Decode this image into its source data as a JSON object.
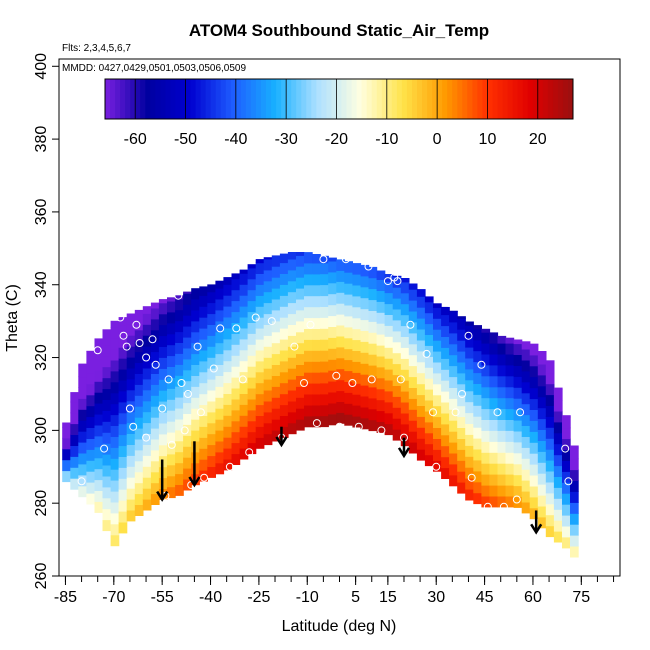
{
  "chart_data": {
    "type": "heatmap",
    "title": "ATOM4 Southbound Static_Air_Temp",
    "subtitle_flights": "Flts: 2,3,4,5,6,7",
    "subtitle_dates": "MMDD: 0427,0429,0501,0503,0506,0509",
    "xlabel": "Latitude (deg N)",
    "ylabel": "Theta (C)",
    "xlim": [
      -87,
      87
    ],
    "ylim": [
      260,
      402
    ],
    "x_ticks": [
      -85,
      -70,
      -55,
      -40,
      -25,
      -10,
      5,
      15,
      30,
      45,
      60,
      75
    ],
    "x_tick_labels": [
      "-85",
      "-70",
      "-55",
      "-40",
      "-25",
      "-10",
      "5",
      "15",
      "30",
      "45",
      "60",
      "75"
    ],
    "y_ticks": [
      260,
      280,
      300,
      320,
      340,
      360,
      380,
      400
    ],
    "y_tick_labels": [
      "260",
      "280",
      "300",
      "320",
      "340",
      "360",
      "380",
      "400"
    ],
    "colorbar": {
      "range": [
        -66,
        27
      ],
      "ticks": [
        -60,
        -50,
        -40,
        -30,
        -20,
        -10,
        0,
        10,
        20
      ],
      "tick_labels": [
        "-60",
        "-50",
        "-40",
        "-30",
        "-20",
        "-10",
        "0",
        "10",
        "20"
      ],
      "colors": [
        "#7a1fe0",
        "#0000a0",
        "#0000d0",
        "#1e5cff",
        "#18b0ff",
        "#aee0ff",
        "#ffffe0",
        "#ffe34a",
        "#ff9a00",
        "#ff3000",
        "#e00000",
        "#9a1010"
      ]
    },
    "boundary": {
      "lats": [
        -86,
        -80,
        -75,
        -70,
        -65,
        -60,
        -55,
        -50,
        -45,
        -40,
        -35,
        -30,
        -25,
        -20,
        -15,
        -10,
        -5,
        0,
        5,
        10,
        15,
        20,
        25,
        30,
        35,
        40,
        45,
        50,
        55,
        60,
        65,
        70,
        73
      ],
      "bottom": [
        287,
        282,
        278,
        268,
        275,
        278,
        281,
        282,
        285,
        287,
        289,
        292,
        295,
        297,
        299,
        301,
        301,
        302,
        301,
        300,
        299,
        296,
        292,
        289,
        285,
        281,
        279,
        279,
        279,
        276,
        271,
        268,
        265
      ],
      "top": [
        298,
        318,
        325,
        330,
        332,
        334,
        336,
        337,
        339,
        340,
        342,
        344,
        347,
        348,
        349,
        349,
        348,
        347,
        346,
        345,
        343,
        342,
        339,
        335,
        333,
        330,
        328,
        326,
        325,
        324,
        320,
        305,
        295
      ]
    },
    "observations": [
      {
        "lat": -80,
        "theta": 286
      },
      {
        "lat": -75,
        "theta": 322
      },
      {
        "lat": -73,
        "theta": 295
      },
      {
        "lat": -68,
        "theta": 331
      },
      {
        "lat": -67,
        "theta": 326
      },
      {
        "lat": -66,
        "theta": 323
      },
      {
        "lat": -65,
        "theta": 306
      },
      {
        "lat": -64,
        "theta": 301
      },
      {
        "lat": -63,
        "theta": 329
      },
      {
        "lat": -62,
        "theta": 324
      },
      {
        "lat": -60,
        "theta": 320
      },
      {
        "lat": -60,
        "theta": 298
      },
      {
        "lat": -58,
        "theta": 325
      },
      {
        "lat": -57,
        "theta": 318
      },
      {
        "lat": -55,
        "theta": 306
      },
      {
        "lat": -54,
        "theta": 282
      },
      {
        "lat": -53,
        "theta": 314
      },
      {
        "lat": -52,
        "theta": 296
      },
      {
        "lat": -50,
        "theta": 337
      },
      {
        "lat": -49,
        "theta": 313
      },
      {
        "lat": -48,
        "theta": 300
      },
      {
        "lat": -47,
        "theta": 310
      },
      {
        "lat": -46,
        "theta": 285
      },
      {
        "lat": -44,
        "theta": 323
      },
      {
        "lat": -43,
        "theta": 305
      },
      {
        "lat": -42,
        "theta": 287
      },
      {
        "lat": -39,
        "theta": 317
      },
      {
        "lat": -37,
        "theta": 328
      },
      {
        "lat": -34,
        "theta": 290
      },
      {
        "lat": -32,
        "theta": 328
      },
      {
        "lat": -30,
        "theta": 314
      },
      {
        "lat": -28,
        "theta": 294
      },
      {
        "lat": -26,
        "theta": 331
      },
      {
        "lat": -21,
        "theta": 330
      },
      {
        "lat": -18,
        "theta": 298
      },
      {
        "lat": -14,
        "theta": 323
      },
      {
        "lat": -11,
        "theta": 313
      },
      {
        "lat": -9,
        "theta": 329
      },
      {
        "lat": -7,
        "theta": 302
      },
      {
        "lat": -5,
        "theta": 347
      },
      {
        "lat": -1,
        "theta": 315
      },
      {
        "lat": 0,
        "theta": 301
      },
      {
        "lat": 2,
        "theta": 347
      },
      {
        "lat": 4,
        "theta": 313
      },
      {
        "lat": 6,
        "theta": 301
      },
      {
        "lat": 9,
        "theta": 345
      },
      {
        "lat": 10,
        "theta": 314
      },
      {
        "lat": 13,
        "theta": 300
      },
      {
        "lat": 15,
        "theta": 341
      },
      {
        "lat": 17,
        "theta": 342
      },
      {
        "lat": 18,
        "theta": 341
      },
      {
        "lat": 19,
        "theta": 314
      },
      {
        "lat": 20,
        "theta": 298
      },
      {
        "lat": 22,
        "theta": 329
      },
      {
        "lat": 27,
        "theta": 321
      },
      {
        "lat": 29,
        "theta": 305
      },
      {
        "lat": 30,
        "theta": 290
      },
      {
        "lat": 34,
        "theta": 335
      },
      {
        "lat": 36,
        "theta": 305
      },
      {
        "lat": 38,
        "theta": 310
      },
      {
        "lat": 40,
        "theta": 326
      },
      {
        "lat": 41,
        "theta": 287
      },
      {
        "lat": 44,
        "theta": 318
      },
      {
        "lat": 46,
        "theta": 279
      },
      {
        "lat": 49,
        "theta": 305
      },
      {
        "lat": 51,
        "theta": 279
      },
      {
        "lat": 53,
        "theta": 331
      },
      {
        "lat": 55,
        "theta": 281
      },
      {
        "lat": 56,
        "theta": 305
      },
      {
        "lat": 58,
        "theta": 329
      },
      {
        "lat": 70,
        "theta": 295
      },
      {
        "lat": 71,
        "theta": 286
      }
    ],
    "arrows": [
      {
        "lat": -55,
        "theta_top": 292,
        "theta_tip": 281
      },
      {
        "lat": -45,
        "theta_top": 297,
        "theta_tip": 285
      },
      {
        "lat": -18,
        "theta_top": 301,
        "theta_tip": 296
      },
      {
        "lat": 20,
        "theta_top": 298,
        "theta_tip": 293
      },
      {
        "lat": 61,
        "theta_top": 278,
        "theta_tip": 272
      }
    ]
  }
}
